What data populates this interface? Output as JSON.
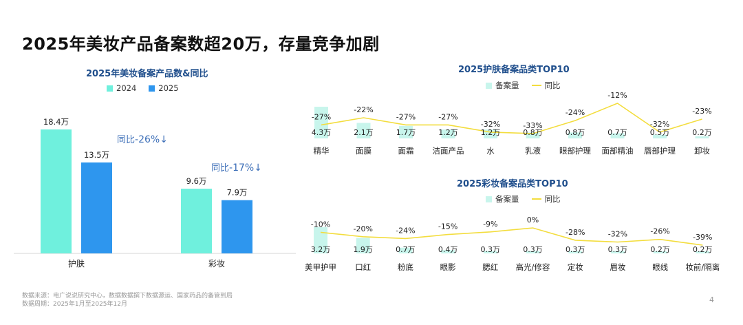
{
  "page": {
    "title": "2025年美妆产品备案数超20万，存量竞争加剧",
    "page_number": "4",
    "footnote": [
      "数据来源：电广说说研究中心，数据数据撰下数据源运、国家药品的备管到局",
      "数据周期：2025年1月至2025年12月"
    ]
  },
  "chart_data": [
    {
      "id": "main",
      "type": "bar",
      "title": "2025年美妆备案产品数&同比",
      "categories": [
        "护肤",
        "彩妆"
      ],
      "series": [
        {
          "name": "2024",
          "values": [
            18.4,
            9.6
          ],
          "labels": [
            "18.4万",
            "9.6万"
          ],
          "color": "#6ff0dd"
        },
        {
          "name": "2025",
          "values": [
            13.5,
            7.9
          ],
          "labels": [
            "13.5万",
            "7.9万"
          ],
          "color": "#2e96ee"
        }
      ],
      "annotations": [
        {
          "prefix": "同比",
          "value": "-26%",
          "arrow": "↓"
        },
        {
          "prefix": "同比",
          "value": "-17%",
          "arrow": "↓"
        }
      ],
      "ylim": [
        0,
        20
      ]
    },
    {
      "id": "skincare",
      "type": "bar+line",
      "title": "2025护肤备案品类TOP10",
      "legend": [
        "备案量",
        "同比"
      ],
      "categories": [
        "精华",
        "面膜",
        "面霜",
        "洁面产品",
        "水",
        "乳液",
        "眼部护理",
        "面部精油",
        "唇部护理",
        "卸妆"
      ],
      "bar_values": [
        4.3,
        2.1,
        1.7,
        1.2,
        1.2,
        0.8,
        0.8,
        0.7,
        0.5,
        0.2
      ],
      "bar_labels": [
        "4.3万",
        "2.1万",
        "1.7万",
        "1.2万",
        "1.2万",
        "0.8万",
        "0.8万",
        "0.7万",
        "0.5万",
        "0.2万"
      ],
      "yoy_values": [
        -27,
        -22,
        -27,
        -27,
        -32,
        -33,
        -24,
        -12,
        -32,
        -23
      ],
      "yoy_labels": [
        "-27%",
        "-22%",
        "-27%",
        "-27%",
        "-32%",
        "-33%",
        "-24%",
        "-12%",
        "-32%",
        "-23%"
      ],
      "bar_color": "#c8f5ec",
      "line_color": "#f3dd3e"
    },
    {
      "id": "makeup",
      "type": "bar+line",
      "title": "2025彩妆备案品类TOP10",
      "legend": [
        "备案量",
        "同比"
      ],
      "categories": [
        "美甲护甲",
        "口红",
        "粉底",
        "眼影",
        "腮红",
        "高光/修容",
        "定妆",
        "眉妆",
        "眼线",
        "妆前/隔离"
      ],
      "bar_values": [
        3.2,
        1.9,
        0.7,
        0.4,
        0.3,
        0.3,
        0.3,
        0.3,
        0.2,
        0.2
      ],
      "bar_labels": [
        "3.2万",
        "1.9万",
        "0.7万",
        "0.4万",
        "0.3万",
        "0.3万",
        "0.3万",
        "0.3万",
        "0.2万",
        "0.2万"
      ],
      "yoy_values": [
        -10,
        -20,
        -24,
        -15,
        -9,
        0,
        -28,
        -32,
        -26,
        -39
      ],
      "yoy_labels": [
        "-10%",
        "-20%",
        "-24%",
        "-15%",
        "-9%",
        "0%",
        "-28%",
        "-32%",
        "-26%",
        "-39%"
      ],
      "bar_color": "#c8f5ec",
      "line_color": "#f3dd3e"
    }
  ]
}
